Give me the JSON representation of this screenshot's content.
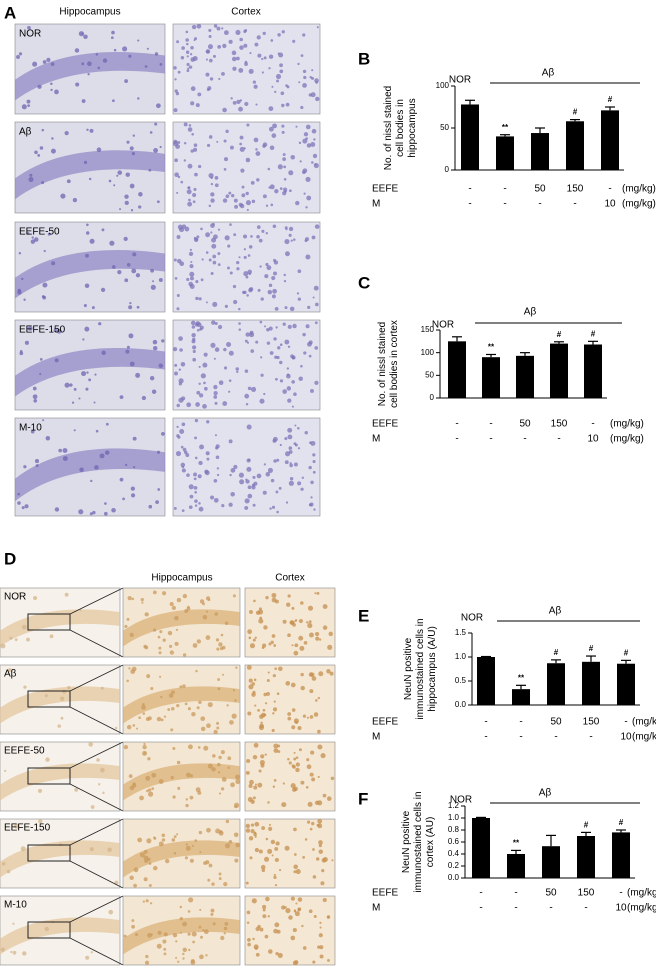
{
  "panel_a": {
    "label": "A",
    "columns": [
      "Hippocampus",
      "Cortex"
    ],
    "rows": [
      "NOR",
      "Aβ",
      "EEFE-50",
      "EEFE-150",
      "M-10"
    ]
  },
  "panel_d": {
    "label": "D",
    "columns": [
      "Hippocampus",
      "Cortex"
    ],
    "rows": [
      "NOR",
      "Aβ",
      "EEFE-50",
      "EEFE-150",
      "M-10"
    ]
  },
  "chart_data": [
    {
      "type": "bar",
      "label": "B",
      "ylabel": [
        "No. of  nissl stained",
        "cell bodies in",
        "hippocampus"
      ],
      "group_labels": [
        "NOR",
        "Aβ"
      ],
      "values": [
        78,
        40,
        44,
        58,
        71
      ],
      "errors": [
        5,
        2,
        6,
        2,
        4
      ],
      "annotations": [
        null,
        "**",
        null,
        "#",
        "#"
      ],
      "ylim": [
        0,
        100
      ],
      "yticks": [
        0,
        50,
        100
      ],
      "color": "#000000",
      "dose_rows": [
        {
          "name": "EEFE",
          "values": [
            "-",
            "-",
            "50",
            "150",
            "-"
          ],
          "unit": "(mg/kg)"
        },
        {
          "name": "M",
          "values": [
            "-",
            "-",
            "-",
            "-",
            "10"
          ],
          "unit": "(mg/kg)"
        }
      ]
    },
    {
      "type": "bar",
      "label": "C",
      "ylabel": [
        "No. of  nissl stained",
        "cell bodies in cortex"
      ],
      "group_labels": [
        "NOR",
        "Aβ"
      ],
      "values": [
        125,
        90,
        93,
        120,
        118
      ],
      "errors": [
        10,
        6,
        7,
        4,
        7
      ],
      "annotations": [
        null,
        "**",
        null,
        "#",
        "#"
      ],
      "ylim": [
        0,
        150
      ],
      "yticks": [
        0,
        50,
        100,
        150
      ],
      "color": "#000000",
      "dose_rows": [
        {
          "name": "EEFE",
          "values": [
            "-",
            "-",
            "50",
            "150",
            "-"
          ],
          "unit": "(mg/kg)"
        },
        {
          "name": "M",
          "values": [
            "-",
            "-",
            "-",
            "-",
            "10"
          ],
          "unit": "(mg/kg)"
        }
      ]
    },
    {
      "type": "bar",
      "label": "E",
      "ylabel": [
        "NeuN positive",
        "immunostained cells in",
        "hippocampus (A/U)"
      ],
      "group_labels": [
        "NOR",
        "Aβ"
      ],
      "values": [
        1.0,
        0.33,
        0.87,
        0.9,
        0.86
      ],
      "errors": [
        0.01,
        0.08,
        0.07,
        0.12,
        0.07
      ],
      "annotations": [
        null,
        "**",
        "#",
        "#",
        "#"
      ],
      "ylim": [
        0,
        1.5
      ],
      "yticks": [
        {
          "value": 0,
          "label": "0.0"
        },
        0.5,
        {
          "value": 1,
          "label": "1.0"
        },
        1.5
      ],
      "color": "#000000",
      "dose_rows": [
        {
          "name": "EEFE",
          "values": [
            "-",
            "-",
            "50",
            "150",
            "-"
          ],
          "unit": "(mg/kg)"
        },
        {
          "name": "M",
          "values": [
            "-",
            "-",
            "-",
            "-",
            "10"
          ],
          "unit": "(mg/kg)"
        }
      ]
    },
    {
      "type": "bar",
      "label": "F",
      "ylabel": [
        "NeuN positive",
        "immunostained cells in",
        "cortex (AU)"
      ],
      "group_labels": [
        "NOR",
        "Aβ"
      ],
      "values": [
        1.0,
        0.4,
        0.53,
        0.7,
        0.76
      ],
      "errors": [
        0.01,
        0.06,
        0.18,
        0.06,
        0.04
      ],
      "annotations": [
        null,
        "**",
        null,
        "#",
        "#"
      ],
      "ylim": [
        0,
        1.2
      ],
      "yticks": [
        {
          "value": 0,
          "label": "0.0"
        },
        0.2,
        0.4,
        0.6,
        0.8,
        {
          "value": 1,
          "label": "1.0"
        },
        1.2
      ],
      "color": "#000000",
      "dose_rows": [
        {
          "name": "EEFE",
          "values": [
            "-",
            "-",
            "50",
            "150",
            "-"
          ],
          "unit": "(mg/kg)"
        },
        {
          "name": "M",
          "values": [
            "-",
            "-",
            "-",
            "-",
            "10"
          ],
          "unit": "(mg/kg)"
        }
      ]
    }
  ]
}
